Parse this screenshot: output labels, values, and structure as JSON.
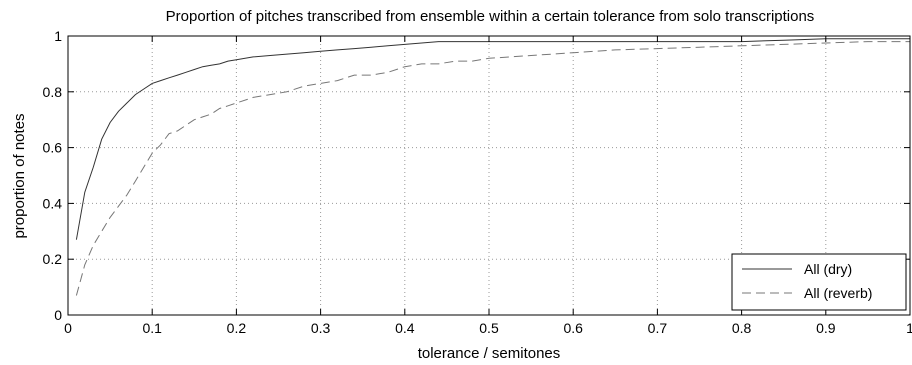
{
  "chart_data": {
    "type": "line",
    "title": "Proportion of pitches transcribed from ensemble within a certain tolerance from solo transcriptions",
    "xlabel": "tolerance / semitones",
    "ylabel": "proportion of notes",
    "xlim": [
      0,
      1
    ],
    "ylim": [
      0,
      1
    ],
    "xticks": [
      0,
      0.1,
      0.2,
      0.3,
      0.4,
      0.5,
      0.6,
      0.7,
      0.8,
      0.9,
      1
    ],
    "xtick_labels": [
      "0",
      "0.1",
      "0.2",
      "0.3",
      "0.4",
      "0.5",
      "0.6",
      "0.7",
      "0.8",
      "0.9",
      "1"
    ],
    "yticks": [
      0,
      0.2,
      0.4,
      0.6,
      0.8,
      1
    ],
    "ytick_labels": [
      "0",
      "0.2",
      "0.4",
      "0.6",
      "0.8",
      "1"
    ],
    "grid": true,
    "legend_position": "bottom-right",
    "series": [
      {
        "name": "All (dry)",
        "style": "solid",
        "color": "#333333",
        "x": [
          0.01,
          0.02,
          0.03,
          0.04,
          0.05,
          0.06,
          0.07,
          0.08,
          0.09,
          0.1,
          0.11,
          0.12,
          0.13,
          0.14,
          0.15,
          0.16,
          0.17,
          0.18,
          0.19,
          0.2,
          0.22,
          0.24,
          0.26,
          0.28,
          0.3,
          0.32,
          0.34,
          0.36,
          0.38,
          0.4,
          0.42,
          0.44,
          0.46,
          0.48,
          0.5,
          0.55,
          0.6,
          0.65,
          0.7,
          0.75,
          0.8,
          0.85,
          0.9,
          0.95,
          1.0
        ],
        "y": [
          0.27,
          0.44,
          0.53,
          0.63,
          0.69,
          0.73,
          0.76,
          0.79,
          0.81,
          0.83,
          0.84,
          0.85,
          0.86,
          0.87,
          0.88,
          0.89,
          0.895,
          0.9,
          0.91,
          0.915,
          0.925,
          0.93,
          0.935,
          0.94,
          0.945,
          0.95,
          0.955,
          0.96,
          0.965,
          0.97,
          0.975,
          0.98,
          0.98,
          0.98,
          0.98,
          0.98,
          0.98,
          0.98,
          0.98,
          0.98,
          0.98,
          0.985,
          0.99,
          0.99,
          0.99
        ]
      },
      {
        "name": "All (reverb)",
        "style": "dashed",
        "color": "#777777",
        "x": [
          0.01,
          0.02,
          0.03,
          0.04,
          0.05,
          0.06,
          0.07,
          0.08,
          0.09,
          0.1,
          0.11,
          0.12,
          0.13,
          0.14,
          0.15,
          0.16,
          0.17,
          0.18,
          0.19,
          0.2,
          0.22,
          0.24,
          0.26,
          0.28,
          0.3,
          0.32,
          0.34,
          0.36,
          0.38,
          0.4,
          0.42,
          0.44,
          0.46,
          0.48,
          0.5,
          0.55,
          0.6,
          0.65,
          0.7,
          0.75,
          0.8,
          0.85,
          0.9,
          0.95,
          1.0
        ],
        "y": [
          0.07,
          0.18,
          0.25,
          0.3,
          0.35,
          0.39,
          0.43,
          0.48,
          0.53,
          0.58,
          0.61,
          0.65,
          0.66,
          0.68,
          0.7,
          0.71,
          0.72,
          0.74,
          0.75,
          0.76,
          0.78,
          0.79,
          0.8,
          0.82,
          0.83,
          0.84,
          0.86,
          0.86,
          0.87,
          0.89,
          0.9,
          0.9,
          0.91,
          0.91,
          0.92,
          0.93,
          0.94,
          0.95,
          0.955,
          0.96,
          0.965,
          0.97,
          0.975,
          0.98,
          0.98
        ]
      }
    ]
  }
}
